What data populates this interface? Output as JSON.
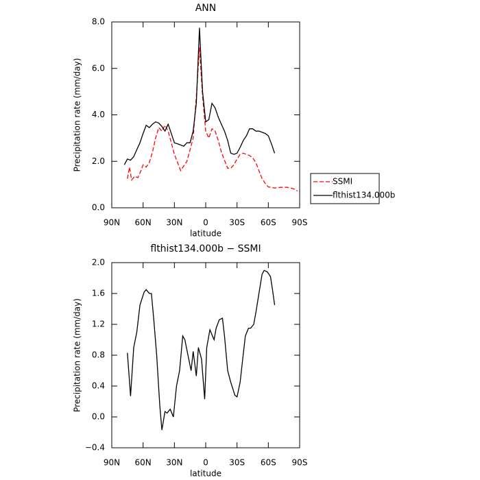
{
  "chart_data": [
    {
      "type": "line",
      "title": "ANN",
      "xlabel": "latitude",
      "ylabel": "Precipitation rate (mm/day)",
      "xlim": [
        90,
        -90
      ],
      "xticks": [
        {
          "value": 90,
          "label": "90N"
        },
        {
          "value": 60,
          "label": "60N"
        },
        {
          "value": 30,
          "label": "30N"
        },
        0,
        {
          "value": -30,
          "label": "30S"
        },
        {
          "value": -60,
          "label": "60S"
        },
        {
          "value": -90,
          "label": "90S"
        }
      ],
      "ylim": [
        0,
        8
      ],
      "yticks": [
        {
          "value": 0,
          "label": "0.0"
        },
        {
          "value": 2,
          "label": "2.0"
        },
        {
          "value": 4,
          "label": "4.0"
        },
        {
          "value": 6,
          "label": "6.0"
        },
        {
          "value": 8,
          "label": "8.0"
        }
      ],
      "legend": "outside right",
      "series": [
        {
          "name": "SSMI",
          "color": "#ff0000",
          "line_style": "dashed",
          "x": [
            75,
            73,
            71,
            68,
            65,
            62,
            60,
            57,
            54,
            51,
            48,
            45,
            42,
            39,
            36,
            33,
            30,
            27,
            24,
            21,
            18,
            15,
            12,
            9,
            6,
            3,
            0,
            -3,
            -6,
            -9,
            -12,
            -15,
            -18,
            -21,
            -24,
            -27,
            -30,
            -33,
            -36,
            -39,
            -42,
            -45,
            -48,
            -51,
            -54,
            -57,
            -60,
            -66,
            -72,
            -78,
            -84,
            -88
          ],
          "values": [
            1.25,
            1.75,
            1.2,
            1.35,
            1.3,
            1.6,
            1.85,
            1.75,
            1.95,
            2.4,
            3.0,
            3.45,
            3.3,
            3.55,
            3.3,
            2.8,
            2.3,
            1.95,
            1.6,
            1.8,
            2.0,
            2.5,
            3.0,
            4.8,
            6.9,
            4.8,
            3.3,
            3.0,
            3.4,
            3.3,
            2.9,
            2.4,
            2.05,
            1.7,
            1.7,
            1.85,
            2.1,
            2.3,
            2.35,
            2.3,
            2.25,
            2.15,
            1.95,
            1.6,
            1.25,
            1.05,
            0.9,
            0.85,
            0.88,
            0.88,
            0.82,
            0.72
          ]
        },
        {
          "name": "flthist134.000b",
          "color": "#000000",
          "line_style": "solid",
          "x": [
            78,
            75,
            72,
            69,
            66,
            63,
            60,
            57,
            54,
            51,
            48,
            45,
            42,
            39,
            36,
            33,
            30,
            27,
            24,
            21,
            18,
            15,
            12,
            9,
            6,
            3,
            0,
            -3,
            -6,
            -9,
            -12,
            -15,
            -18,
            -21,
            -24,
            -27,
            -30,
            -33,
            -36,
            -39,
            -42,
            -45,
            -48,
            -51,
            -54,
            -57,
            -60,
            -63,
            -66
          ],
          "values": [
            1.85,
            2.1,
            2.05,
            2.2,
            2.5,
            2.8,
            3.2,
            3.55,
            3.45,
            3.6,
            3.7,
            3.65,
            3.5,
            3.3,
            3.6,
            3.2,
            2.8,
            2.75,
            2.7,
            2.65,
            2.8,
            2.8,
            3.3,
            4.5,
            7.75,
            5.0,
            3.7,
            3.8,
            4.5,
            4.3,
            3.9,
            3.6,
            3.3,
            2.9,
            2.35,
            2.3,
            2.35,
            2.6,
            2.9,
            3.1,
            3.4,
            3.4,
            3.3,
            3.3,
            3.25,
            3.2,
            3.1,
            2.75,
            2.35
          ]
        }
      ]
    },
    {
      "type": "line",
      "title": "flthist134.000b − SSMI",
      "xlabel": "latitude",
      "ylabel": "Precipitation rate (mm/day)",
      "xlim": [
        90,
        -90
      ],
      "xticks": [
        {
          "value": 90,
          "label": "90N"
        },
        {
          "value": 60,
          "label": "60N"
        },
        {
          "value": 30,
          "label": "30N"
        },
        0,
        {
          "value": -30,
          "label": "30S"
        },
        {
          "value": -60,
          "label": "60S"
        },
        {
          "value": -90,
          "label": "90S"
        }
      ],
      "ylim": [
        -0.4,
        2
      ],
      "yticks": [
        {
          "value": -0.4,
          "label": "−0.4"
        },
        {
          "value": 0,
          "label": "0.0"
        },
        {
          "value": 0.4,
          "label": "0.4"
        },
        {
          "value": 0.8,
          "label": "0.8"
        },
        {
          "value": 1.2,
          "label": "1.2"
        },
        {
          "value": 1.6,
          "label": "1.6"
        },
        {
          "value": 2,
          "label": "2.0"
        }
      ],
      "color": "#000000",
      "x": [
        75,
        72,
        69,
        66,
        63,
        59,
        57,
        54,
        52,
        50,
        47,
        44,
        42,
        39,
        37,
        34,
        31,
        28,
        25,
        22,
        20,
        17,
        14,
        12,
        9,
        7,
        4,
        1,
        -1,
        -4,
        -8,
        -10,
        -13,
        -16,
        -18,
        -21,
        -24,
        -28,
        -30,
        -33,
        -35,
        -38,
        -41,
        -43,
        -46,
        -48,
        -51,
        -54,
        -56,
        -59,
        -62,
        -64,
        -66
      ],
      "values": [
        0.83,
        0.27,
        0.9,
        1.1,
        1.45,
        1.62,
        1.65,
        1.6,
        1.6,
        1.3,
        0.8,
        0.15,
        -0.17,
        0.07,
        0.05,
        0.1,
        0.0,
        0.4,
        0.6,
        1.05,
        1.0,
        0.8,
        0.6,
        0.85,
        0.53,
        0.9,
        0.75,
        0.23,
        0.9,
        1.13,
        1.0,
        1.15,
        1.26,
        1.28,
        1.05,
        0.6,
        0.45,
        0.28,
        0.26,
        0.45,
        0.7,
        1.05,
        1.15,
        1.15,
        1.2,
        1.35,
        1.6,
        1.85,
        1.9,
        1.88,
        1.82,
        1.65,
        1.45
      ]
    }
  ]
}
